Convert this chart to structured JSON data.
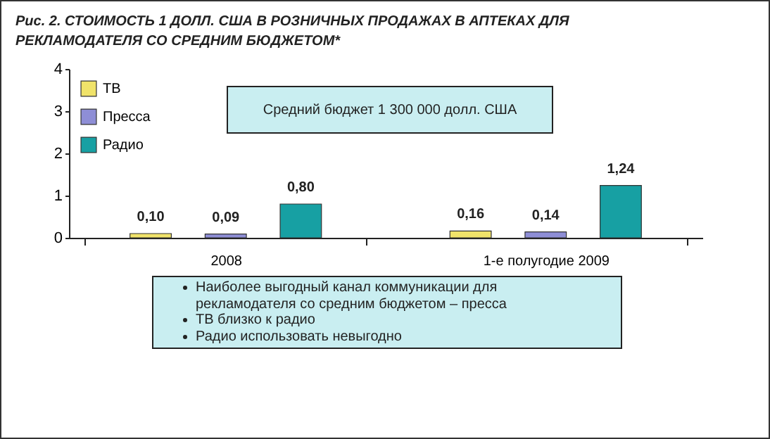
{
  "chart_data": {
    "type": "bar",
    "title": "Рис. 2. СТОИМОСТЬ 1 ДОЛЛ. США В РОЗНИЧНЫХ ПРОДАЖАХ В АПТЕКАХ ДЛЯ РЕКЛАМОДАТЕЛЯ СО СРЕДНИМ БЮДЖЕТОМ*",
    "categories": [
      "2008",
      "1-е полугодие 2009"
    ],
    "series": [
      {
        "name": "ТВ",
        "color": "#f0e36a",
        "values": [
          0.1,
          0.16
        ],
        "value_labels": [
          "0,10",
          "0,16"
        ]
      },
      {
        "name": "Пресса",
        "color": "#8e8ed6",
        "values": [
          0.09,
          0.14
        ],
        "value_labels": [
          "0,09",
          "0,14"
        ]
      },
      {
        "name": "Радио",
        "color": "#17a0a3",
        "values": [
          0.8,
          1.24
        ],
        "value_labels": [
          "0,80",
          "1,24"
        ]
      }
    ],
    "ylim": [
      0,
      4
    ],
    "yticks": [
      0,
      1,
      2,
      3,
      4
    ],
    "legend": "top left",
    "annotations": [
      "Средний бюджет  1 300 000 долл. США",
      "Наиболее выгодный канал коммуникации для рекламодателя со средним бюджетом – пресса",
      "ТВ близко к радио",
      "Радио использовать невыгодно"
    ]
  }
}
